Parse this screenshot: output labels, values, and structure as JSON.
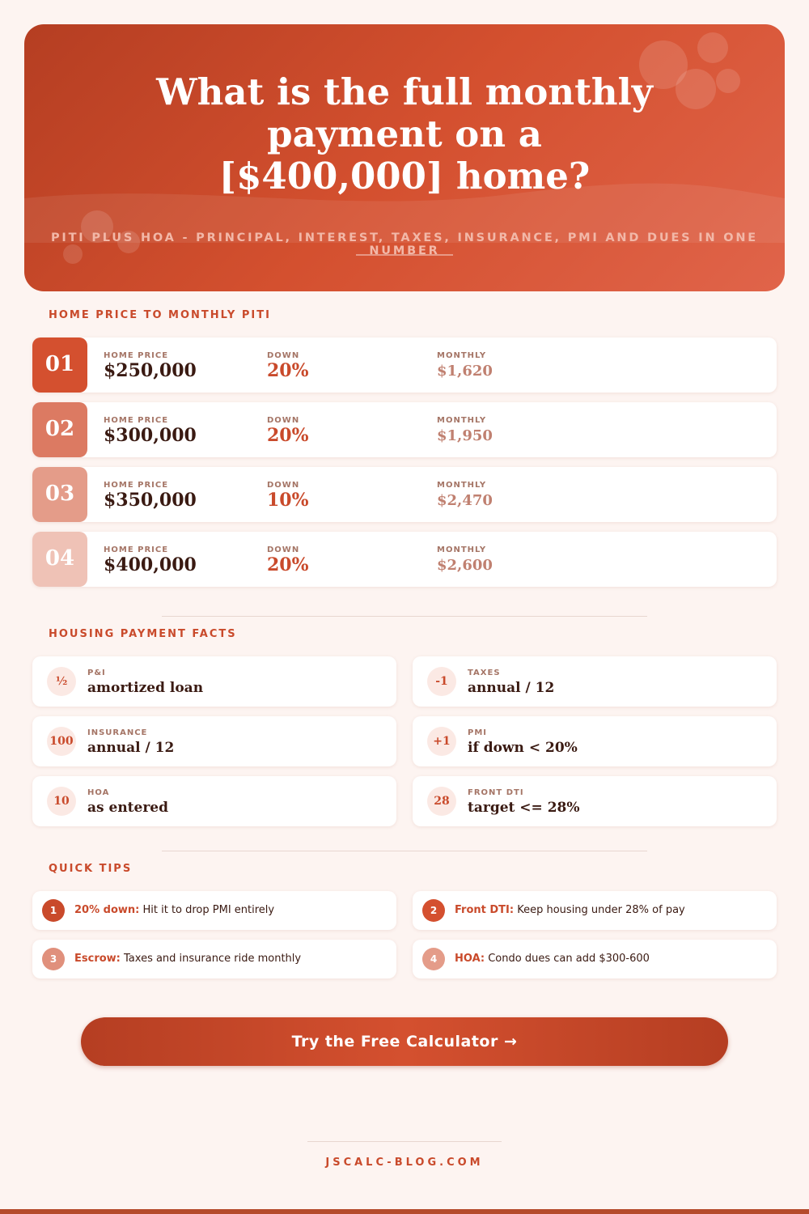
{
  "header": {
    "title": "What is the full monthly payment on a [$400,000] home?",
    "subtitle": "PITI PLUS HOA - PRINCIPAL, INTEREST, TAXES, INSURANCE, PMI AND DUES IN ONE NUMBER"
  },
  "table": {
    "heading": "HOME PRICE TO MONTHLY PITI",
    "column_labels": [
      "HOME PRICE",
      "DOWN",
      "MONTHLY"
    ],
    "rows": [
      {
        "index": "01",
        "price": "$250,000",
        "down": "20%",
        "monthly": "$1,620"
      },
      {
        "index": "02",
        "price": "$300,000",
        "down": "20%",
        "monthly": "$1,950"
      },
      {
        "index": "03",
        "price": "$350,000",
        "down": "10%",
        "monthly": "$2,470"
      },
      {
        "index": "04",
        "price": "$400,000",
        "down": "20%",
        "monthly": "$2,600"
      }
    ]
  },
  "facts": {
    "heading": "HOUSING PAYMENT FACTS",
    "items": [
      {
        "badge": "½",
        "label": "P&I",
        "value": "amortized loan"
      },
      {
        "badge": "-1",
        "label": "TAXES",
        "value": "annual / 12"
      },
      {
        "badge": "100",
        "label": "INSURANCE",
        "value": "annual / 12"
      },
      {
        "badge": "+1",
        "label": "PMI",
        "value": "if down < 20%"
      },
      {
        "badge": "10",
        "label": "HOA",
        "value": "as entered"
      },
      {
        "badge": "28",
        "label": "FRONT DTI",
        "value": "target <= 28%"
      }
    ]
  },
  "tips": {
    "heading": "QUICK TIPS",
    "items": [
      {
        "number": "1",
        "term": "20% down:",
        "text": "Hit it to drop PMI entirely"
      },
      {
        "number": "2",
        "term": "Front DTI:",
        "text": "Keep housing under 28% of pay"
      },
      {
        "number": "3",
        "term": "Escrow:",
        "text": "Taxes and insurance ride monthly"
      },
      {
        "number": "4",
        "term": "HOA:",
        "text": "Condo dues can add $300-600"
      }
    ]
  },
  "cta": "Try the Free Calculator →",
  "footer": "JSCALC-BLOG.COM"
}
